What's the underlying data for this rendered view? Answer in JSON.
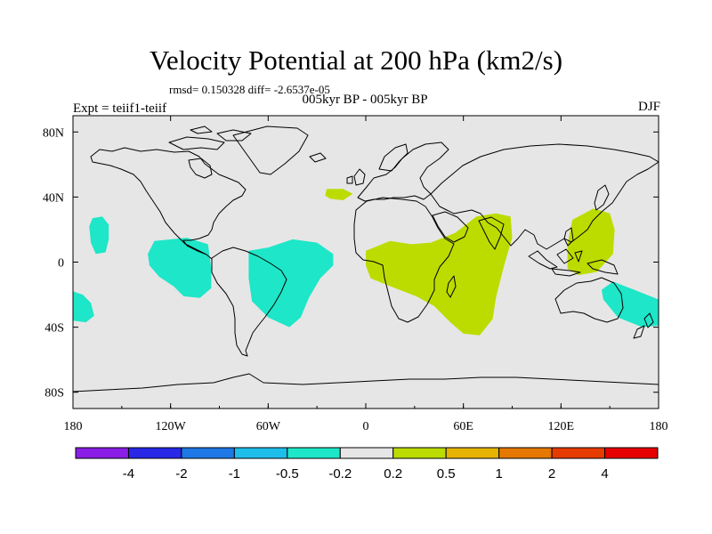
{
  "title": "Velocity Potential at 200 hPa (km2/s)",
  "stats_text": "rmsd= 0.150328 diff= -2.6537e-05",
  "period_text": "005kyr BP - 005kyr BP",
  "experiment_text": "Expt = teiif1-teiif",
  "season": "DJF",
  "map": {
    "projection": "cylindrical-equidistant",
    "lon_range": [
      -180,
      180
    ],
    "lat_range": [
      -90,
      90
    ],
    "background_color": "#e6e6e6",
    "coastline_color": "#000000",
    "x_ticks": [
      {
        "lon": -180,
        "label": "180"
      },
      {
        "lon": -120,
        "label": "120W"
      },
      {
        "lon": -60,
        "label": "60W"
      },
      {
        "lon": 0,
        "label": "0"
      },
      {
        "lon": 60,
        "label": "60E"
      },
      {
        "lon": 120,
        "label": "120E"
      },
      {
        "lon": 180,
        "label": "180"
      }
    ],
    "y_ticks": [
      {
        "lat": 80,
        "label": "80N"
      },
      {
        "lat": 40,
        "label": "40N"
      },
      {
        "lat": 0,
        "label": "0"
      },
      {
        "lat": -40,
        "label": "40S"
      },
      {
        "lat": -80,
        "label": "80S"
      }
    ],
    "anomaly_regions": [
      {
        "name": "central-pacific-north-negative",
        "sign": "negative",
        "color": "#1ee6c8",
        "lonlat": [
          [
            -168,
            27
          ],
          [
            -162,
            28
          ],
          [
            -158,
            23
          ],
          [
            -158,
            14
          ],
          [
            -160,
            6
          ],
          [
            -166,
            5
          ],
          [
            -169,
            12
          ],
          [
            -170,
            22
          ]
        ]
      },
      {
        "name": "south-pacific-west-negative",
        "sign": "negative",
        "color": "#1ee6c8",
        "lonlat": [
          [
            -180,
            -18
          ],
          [
            -174,
            -20
          ],
          [
            -169,
            -25
          ],
          [
            -167,
            -33
          ],
          [
            -172,
            -37
          ],
          [
            -180,
            -36
          ]
        ]
      },
      {
        "name": "east-pacific-negative",
        "sign": "negative",
        "color": "#1ee6c8",
        "lonlat": [
          [
            -130,
            13
          ],
          [
            -110,
            15
          ],
          [
            -97,
            11
          ],
          [
            -95,
            -4
          ],
          [
            -95,
            -16
          ],
          [
            -102,
            -22
          ],
          [
            -112,
            -21
          ],
          [
            -118,
            -15
          ],
          [
            -127,
            -9
          ],
          [
            -133,
            -2
          ],
          [
            -134,
            5
          ]
        ]
      },
      {
        "name": "south-america-atlantic-negative",
        "sign": "negative",
        "color": "#1ee6c8",
        "lonlat": [
          [
            -72,
            7
          ],
          [
            -60,
            9
          ],
          [
            -45,
            14
          ],
          [
            -30,
            12
          ],
          [
            -20,
            5
          ],
          [
            -20,
            -2
          ],
          [
            -28,
            -10
          ],
          [
            -35,
            -22
          ],
          [
            -40,
            -34
          ],
          [
            -47,
            -40
          ],
          [
            -60,
            -34
          ],
          [
            -70,
            -24
          ],
          [
            -72,
            -10
          ]
        ]
      },
      {
        "name": "australia-tasman-negative",
        "sign": "negative",
        "color": "#1ee6c8",
        "lonlat": [
          [
            152,
            -12
          ],
          [
            165,
            -17
          ],
          [
            180,
            -23
          ],
          [
            180,
            -39
          ],
          [
            170,
            -40
          ],
          [
            155,
            -34
          ],
          [
            146,
            -23
          ],
          [
            145,
            -17
          ]
        ]
      },
      {
        "name": "mediterranean-positive",
        "sign": "positive",
        "color": "#bcdc00",
        "lonlat": [
          [
            -24,
            45
          ],
          [
            -14,
            45
          ],
          [
            -8,
            42
          ],
          [
            -14,
            38
          ],
          [
            -22,
            39
          ],
          [
            -25,
            41
          ]
        ]
      },
      {
        "name": "africa-indian-ocean-positive",
        "sign": "positive",
        "color": "#bcdc00",
        "lonlat": [
          [
            0,
            7
          ],
          [
            15,
            13
          ],
          [
            28,
            11
          ],
          [
            40,
            12
          ],
          [
            55,
            18
          ],
          [
            68,
            28
          ],
          [
            80,
            30
          ],
          [
            89,
            28
          ],
          [
            90,
            15
          ],
          [
            85,
            -2
          ],
          [
            80,
            -22
          ],
          [
            78,
            -35
          ],
          [
            70,
            -45
          ],
          [
            60,
            -44
          ],
          [
            52,
            -37
          ],
          [
            42,
            -27
          ],
          [
            31,
            -21
          ],
          [
            18,
            -16
          ],
          [
            3,
            -10
          ],
          [
            0,
            -2
          ]
        ]
      },
      {
        "name": "west-pacific-maritime-positive",
        "sign": "positive",
        "color": "#bcdc00",
        "lonlat": [
          [
            127,
            26
          ],
          [
            140,
            33
          ],
          [
            150,
            30
          ],
          [
            153,
            20
          ],
          [
            152,
            5
          ],
          [
            142,
            -6
          ],
          [
            131,
            -8
          ],
          [
            124,
            -4
          ],
          [
            124,
            11
          ]
        ]
      }
    ]
  },
  "colorbar": {
    "colors": [
      "#8a1ee6",
      "#2828e6",
      "#1e78e6",
      "#1ebeeb",
      "#1ee6c8",
      "#e6e6e6",
      "#bcdc00",
      "#e6b400",
      "#e67800",
      "#e63c00",
      "#e60000"
    ],
    "labels": [
      "-4",
      "-2",
      "-1",
      "-0.5",
      "-0.2",
      "0.2",
      "0.5",
      "1",
      "2",
      "4"
    ]
  }
}
